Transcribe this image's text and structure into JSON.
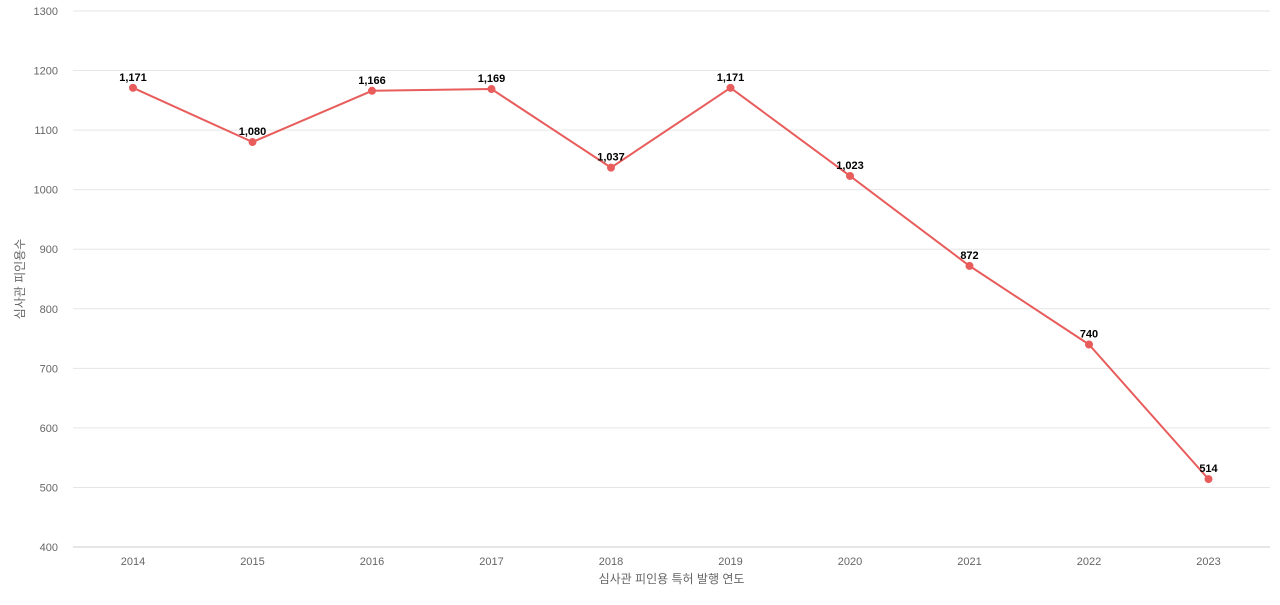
{
  "chart_data": {
    "type": "line",
    "title": "",
    "xlabel": "심사관 피인용 특허 발행 연도",
    "ylabel": "심사관 피인용수",
    "categories": [
      "2014",
      "2015",
      "2016",
      "2017",
      "2018",
      "2019",
      "2020",
      "2021",
      "2022",
      "2023"
    ],
    "series": [
      {
        "values": [
          1171,
          1080,
          1166,
          1169,
          1037,
          1171,
          1023,
          872,
          740,
          514
        ],
        "labels": [
          "1,171",
          "1,080",
          "1,166",
          "1,169",
          "1,037",
          "1,171",
          "1,023",
          "872",
          "740",
          "514"
        ],
        "color": "#e85c5c"
      }
    ],
    "ylim": [
      400,
      1300
    ],
    "yticks": [
      400,
      500,
      600,
      700,
      800,
      900,
      1000,
      1100,
      1200,
      1300
    ],
    "grid": true,
    "legend": "none"
  }
}
